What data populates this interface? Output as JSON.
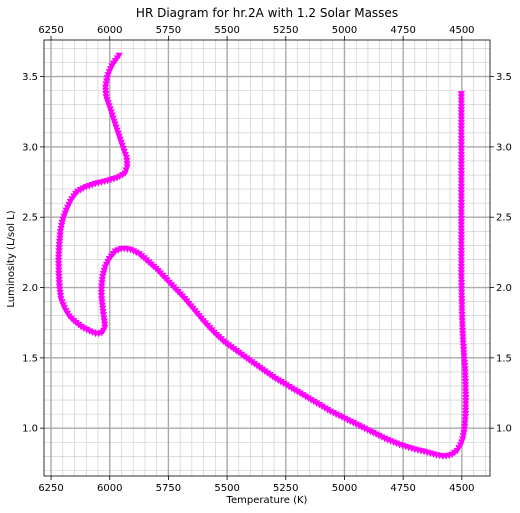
{
  "chart_data": {
    "type": "scatter",
    "title": "HR Diagram for hr.2A with 1.2 Solar Masses",
    "xlabel": "Temperature (K)",
    "ylabel": "Luminosity (L/sol L)",
    "xlim": [
      6280,
      4380
    ],
    "ylim": [
      0.66,
      3.76
    ],
    "x_reversed": true,
    "x_ticks": [
      6250,
      6000,
      5750,
      5500,
      5250,
      5000,
      4750,
      4500
    ],
    "x_tick_labels": [
      "6250",
      "6000",
      "5750",
      "5500",
      "5250",
      "5000",
      "4750",
      "4500"
    ],
    "y_ticks": [
      1.0,
      1.5,
      2.0,
      2.5,
      3.0,
      3.5
    ],
    "y_tick_labels": [
      "1.0",
      "1.5",
      "2.0",
      "2.5",
      "3.0",
      "3.5"
    ],
    "top_axis": true,
    "right_axis": true,
    "grid": "major-and-minor",
    "marker": "triangle-down",
    "marker_color": "#ff00ff",
    "track": [
      [
        5960,
        3.65
      ],
      [
        5990,
        3.58
      ],
      [
        6010,
        3.5
      ],
      [
        6018,
        3.42
      ],
      [
        6015,
        3.35
      ],
      [
        6000,
        3.28
      ],
      [
        5985,
        3.2
      ],
      [
        5965,
        3.1
      ],
      [
        5945,
        3.0
      ],
      [
        5928,
        2.92
      ],
      [
        5925,
        2.86
      ],
      [
        5935,
        2.81
      ],
      [
        5970,
        2.78
      ],
      [
        6010,
        2.76
      ],
      [
        6060,
        2.74
      ],
      [
        6110,
        2.71
      ],
      [
        6140,
        2.68
      ],
      [
        6165,
        2.62
      ],
      [
        6185,
        2.55
      ],
      [
        6200,
        2.48
      ],
      [
        6210,
        2.4
      ],
      [
        6215,
        2.3
      ],
      [
        6218,
        2.2
      ],
      [
        6217,
        2.1
      ],
      [
        6214,
        2.0
      ],
      [
        6208,
        1.92
      ],
      [
        6195,
        1.86
      ],
      [
        6175,
        1.8
      ],
      [
        6150,
        1.76
      ],
      [
        6120,
        1.72
      ],
      [
        6085,
        1.69
      ],
      [
        6055,
        1.67
      ],
      [
        6030,
        1.68
      ],
      [
        6020,
        1.72
      ],
      [
        6025,
        1.78
      ],
      [
        6030,
        1.85
      ],
      [
        6035,
        1.93
      ],
      [
        6035,
        2.0
      ],
      [
        6030,
        2.08
      ],
      [
        6018,
        2.15
      ],
      [
        6000,
        2.21
      ],
      [
        5975,
        2.26
      ],
      [
        5945,
        2.28
      ],
      [
        5910,
        2.27
      ],
      [
        5875,
        2.24
      ],
      [
        5840,
        2.19
      ],
      [
        5800,
        2.13
      ],
      [
        5760,
        2.06
      ],
      [
        5720,
        1.99
      ],
      [
        5680,
        1.92
      ],
      [
        5640,
        1.84
      ],
      [
        5600,
        1.76
      ],
      [
        5555,
        1.68
      ],
      [
        5510,
        1.61
      ],
      [
        5460,
        1.55
      ],
      [
        5410,
        1.49
      ],
      [
        5360,
        1.43
      ],
      [
        5300,
        1.36
      ],
      [
        5240,
        1.3
      ],
      [
        5180,
        1.24
      ],
      [
        5120,
        1.18
      ],
      [
        5060,
        1.12
      ],
      [
        5000,
        1.07
      ],
      [
        4940,
        1.02
      ],
      [
        4880,
        0.97
      ],
      [
        4820,
        0.92
      ],
      [
        4760,
        0.88
      ],
      [
        4700,
        0.85
      ],
      [
        4650,
        0.83
      ],
      [
        4610,
        0.81
      ],
      [
        4575,
        0.8
      ],
      [
        4545,
        0.81
      ],
      [
        4520,
        0.84
      ],
      [
        4505,
        0.88
      ],
      [
        4495,
        0.93
      ],
      [
        4488,
        1.0
      ],
      [
        4484,
        1.1
      ],
      [
        4483,
        1.2
      ],
      [
        4484,
        1.3
      ],
      [
        4486,
        1.4
      ],
      [
        4490,
        1.5
      ],
      [
        4494,
        1.6
      ],
      [
        4497,
        1.7
      ],
      [
        4499,
        1.8
      ],
      [
        4500,
        1.9
      ],
      [
        4501,
        2.0
      ],
      [
        4502,
        2.1
      ],
      [
        4502,
        2.2
      ],
      [
        4502,
        2.3
      ],
      [
        4502,
        2.4
      ],
      [
        4502,
        2.5
      ],
      [
        4502,
        2.6
      ],
      [
        4502,
        2.7
      ],
      [
        4502,
        2.8
      ],
      [
        4502,
        2.9
      ],
      [
        4502,
        3.0
      ],
      [
        4502,
        3.1
      ],
      [
        4502,
        3.2
      ],
      [
        4502,
        3.3
      ],
      [
        4502,
        3.38
      ]
    ]
  }
}
